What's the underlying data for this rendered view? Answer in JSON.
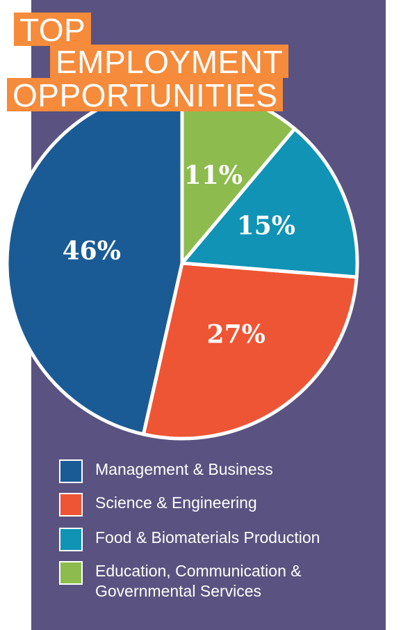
{
  "chart_data": {
    "type": "pie",
    "title": [
      "TOP",
      "EMPLOYMENT",
      "OPPORTUNITIES"
    ],
    "categories": [
      "Management & Business",
      "Science & Engineering",
      "Food & Biomaterials Production",
      "Education, Communication & Governmental Services"
    ],
    "values": [
      46,
      27,
      15,
      11
    ],
    "value_labels": [
      "46%",
      "27%",
      "15%",
      "11%"
    ],
    "colors": [
      "#1b5b95",
      "#ee5534",
      "#1093b5",
      "#8dbb4e"
    ]
  }
}
